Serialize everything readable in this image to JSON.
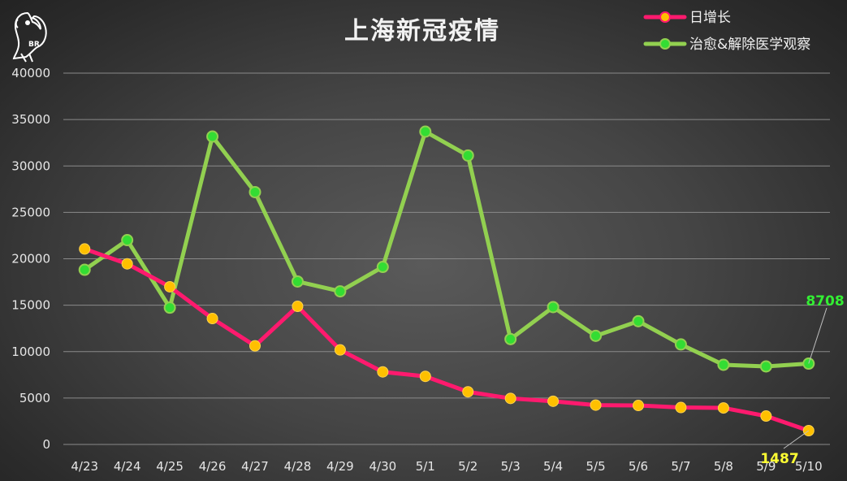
{
  "chart_data": {
    "type": "line",
    "title": "上海新冠疫情",
    "categories": [
      "4/23",
      "4/24",
      "4/25",
      "4/26",
      "4/27",
      "4/28",
      "4/29",
      "4/30",
      "5/1",
      "5/2",
      "5/3",
      "5/4",
      "5/5",
      "5/6",
      "5/7",
      "5/8",
      "5/9",
      "5/10"
    ],
    "series": [
      {
        "name": "日增长",
        "color": "#ff1a6e",
        "marker_color": "#ffc000",
        "values": [
          21058,
          19455,
          16983,
          13562,
          10622,
          14880,
          10181,
          7814,
          7333,
          5669,
          4960,
          4651,
          4237,
          4197,
          3979,
          3933,
          3061,
          1487
        ]
      },
      {
        "name": "治愈&解除医学观察",
        "color": "#92d050",
        "marker_color": "#33dd33",
        "values": [
          18816,
          22009,
          14736,
          33172,
          27182,
          17552,
          16491,
          19123,
          33698,
          31122,
          11347,
          14793,
          11696,
          13274,
          10772,
          8577,
          8404,
          8708
        ]
      }
    ],
    "annotations": [
      {
        "text": "8708",
        "series_index": 1,
        "category_index": 17,
        "color": "#33ee33"
      },
      {
        "text": "1487",
        "series_index": 0,
        "category_index": 17,
        "color": "#ffff33"
      }
    ],
    "y_ticks": [
      "0",
      "5000",
      "10000",
      "15000",
      "20000",
      "25000",
      "30000",
      "35000",
      "40000"
    ],
    "ylim": [
      0,
      40000
    ],
    "grid": true,
    "legend_position": "top-right",
    "drop_line_colors": [
      "#ffc000",
      "#00e000"
    ]
  },
  "logo": {
    "name": "parrot-logo",
    "text": "BR"
  }
}
